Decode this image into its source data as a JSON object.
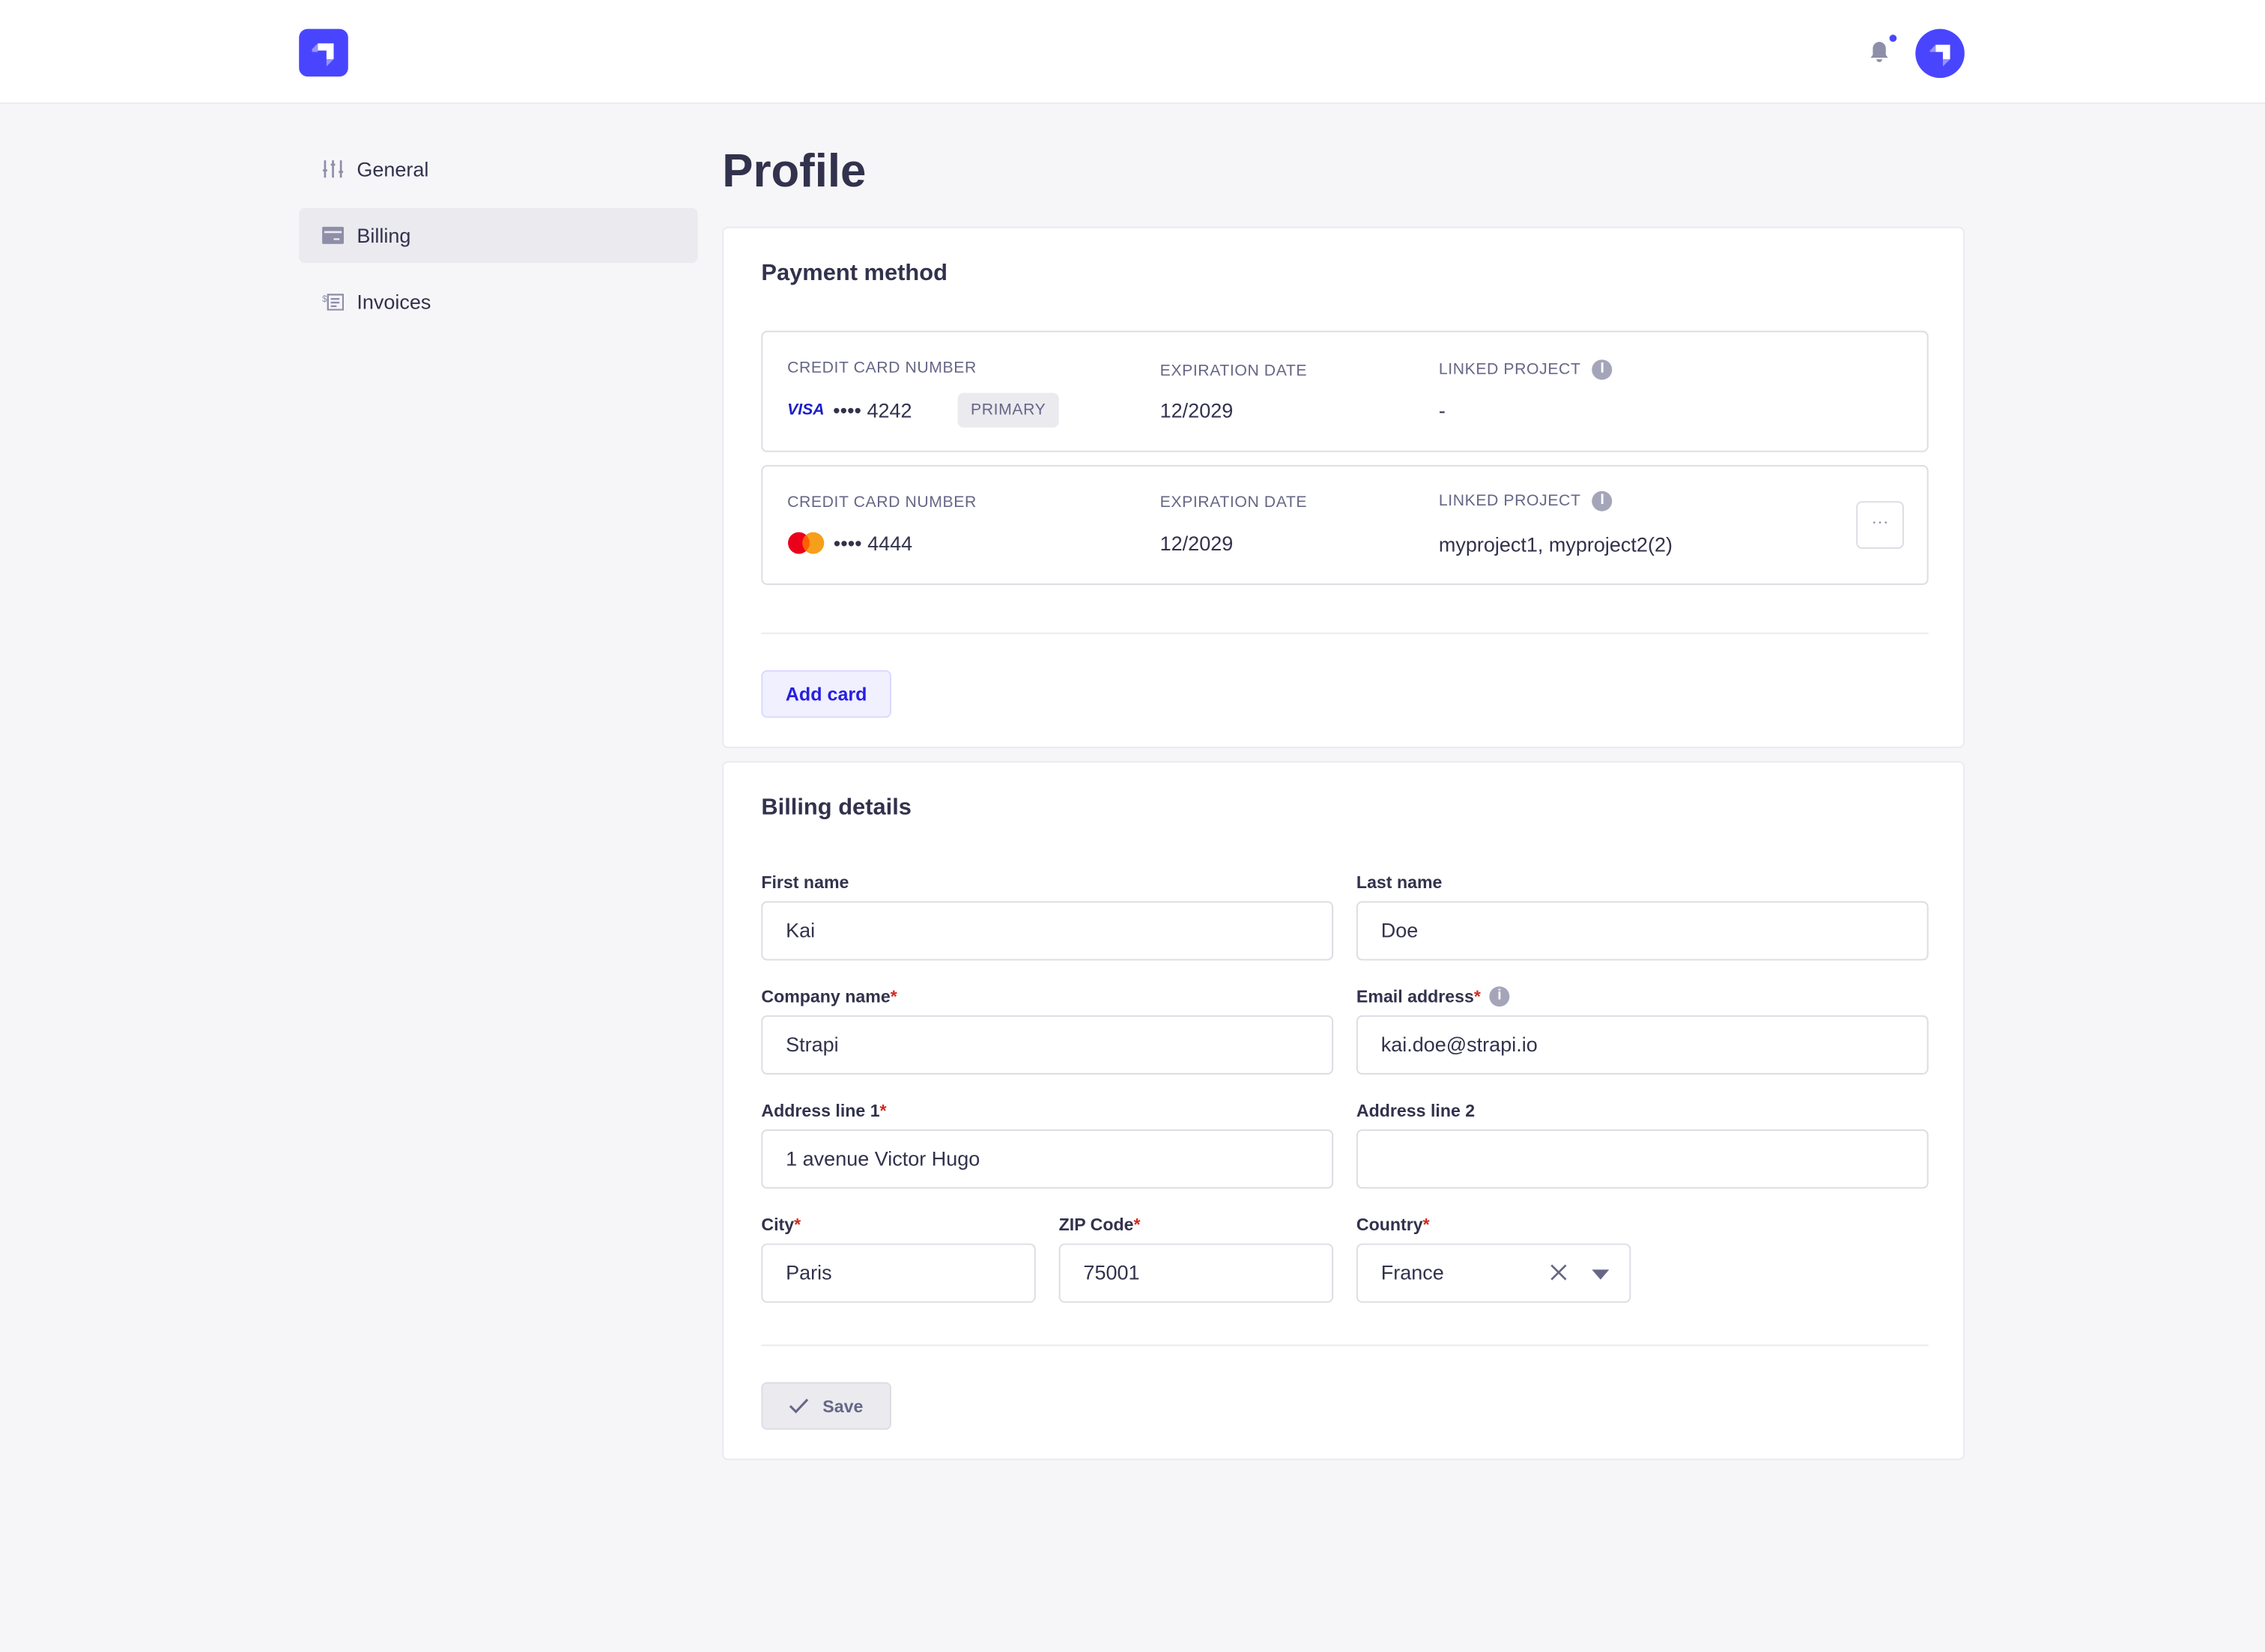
{
  "header": {
    "brand_color": "#4945ff",
    "logo": "strapi-logo",
    "notification_icon": "bell-icon",
    "avatar": "user-avatar"
  },
  "sidebar": {
    "items": [
      {
        "label": "General",
        "icon": "sliders-icon"
      },
      {
        "label": "Billing",
        "icon": "credit-card-icon",
        "active": true
      },
      {
        "label": "Invoices",
        "icon": "invoice-icon"
      }
    ]
  },
  "page": {
    "title": "Profile"
  },
  "payment": {
    "title": "Payment method",
    "cards": [
      {
        "number_label": "Credit card number",
        "brand": "VISA",
        "number": "•••• 4242",
        "badge": "PRIMARY",
        "exp_label": "Expiration date",
        "exp": "12/2029",
        "linked_label": "Linked project",
        "linked": "-"
      },
      {
        "number_label": "Credit card number",
        "brand": "mastercard",
        "number": "•••• 4444",
        "exp_label": "Expiration date",
        "exp": "12/2029",
        "linked_label": "Linked project",
        "linked": "myproject1, myproject2(2)",
        "more": "···"
      }
    ],
    "add_card": "Add card"
  },
  "billing": {
    "title": "Billing details",
    "first_name": {
      "label": "First name",
      "value": "Kai"
    },
    "last_name": {
      "label": "Last name",
      "value": "Doe"
    },
    "company": {
      "label": "Company name",
      "value": "Strapi"
    },
    "email": {
      "label": "Email address",
      "value": "kai.doe@strapi.io"
    },
    "address1": {
      "label": "Address line 1",
      "value": "1 avenue Victor Hugo"
    },
    "address2": {
      "label": "Address line 2",
      "value": ""
    },
    "city": {
      "label": "City",
      "value": "Paris"
    },
    "zip": {
      "label": "ZIP Code",
      "value": "75001"
    },
    "country": {
      "label": "Country",
      "value": "France"
    },
    "required_mark": "*",
    "save": "Save"
  }
}
